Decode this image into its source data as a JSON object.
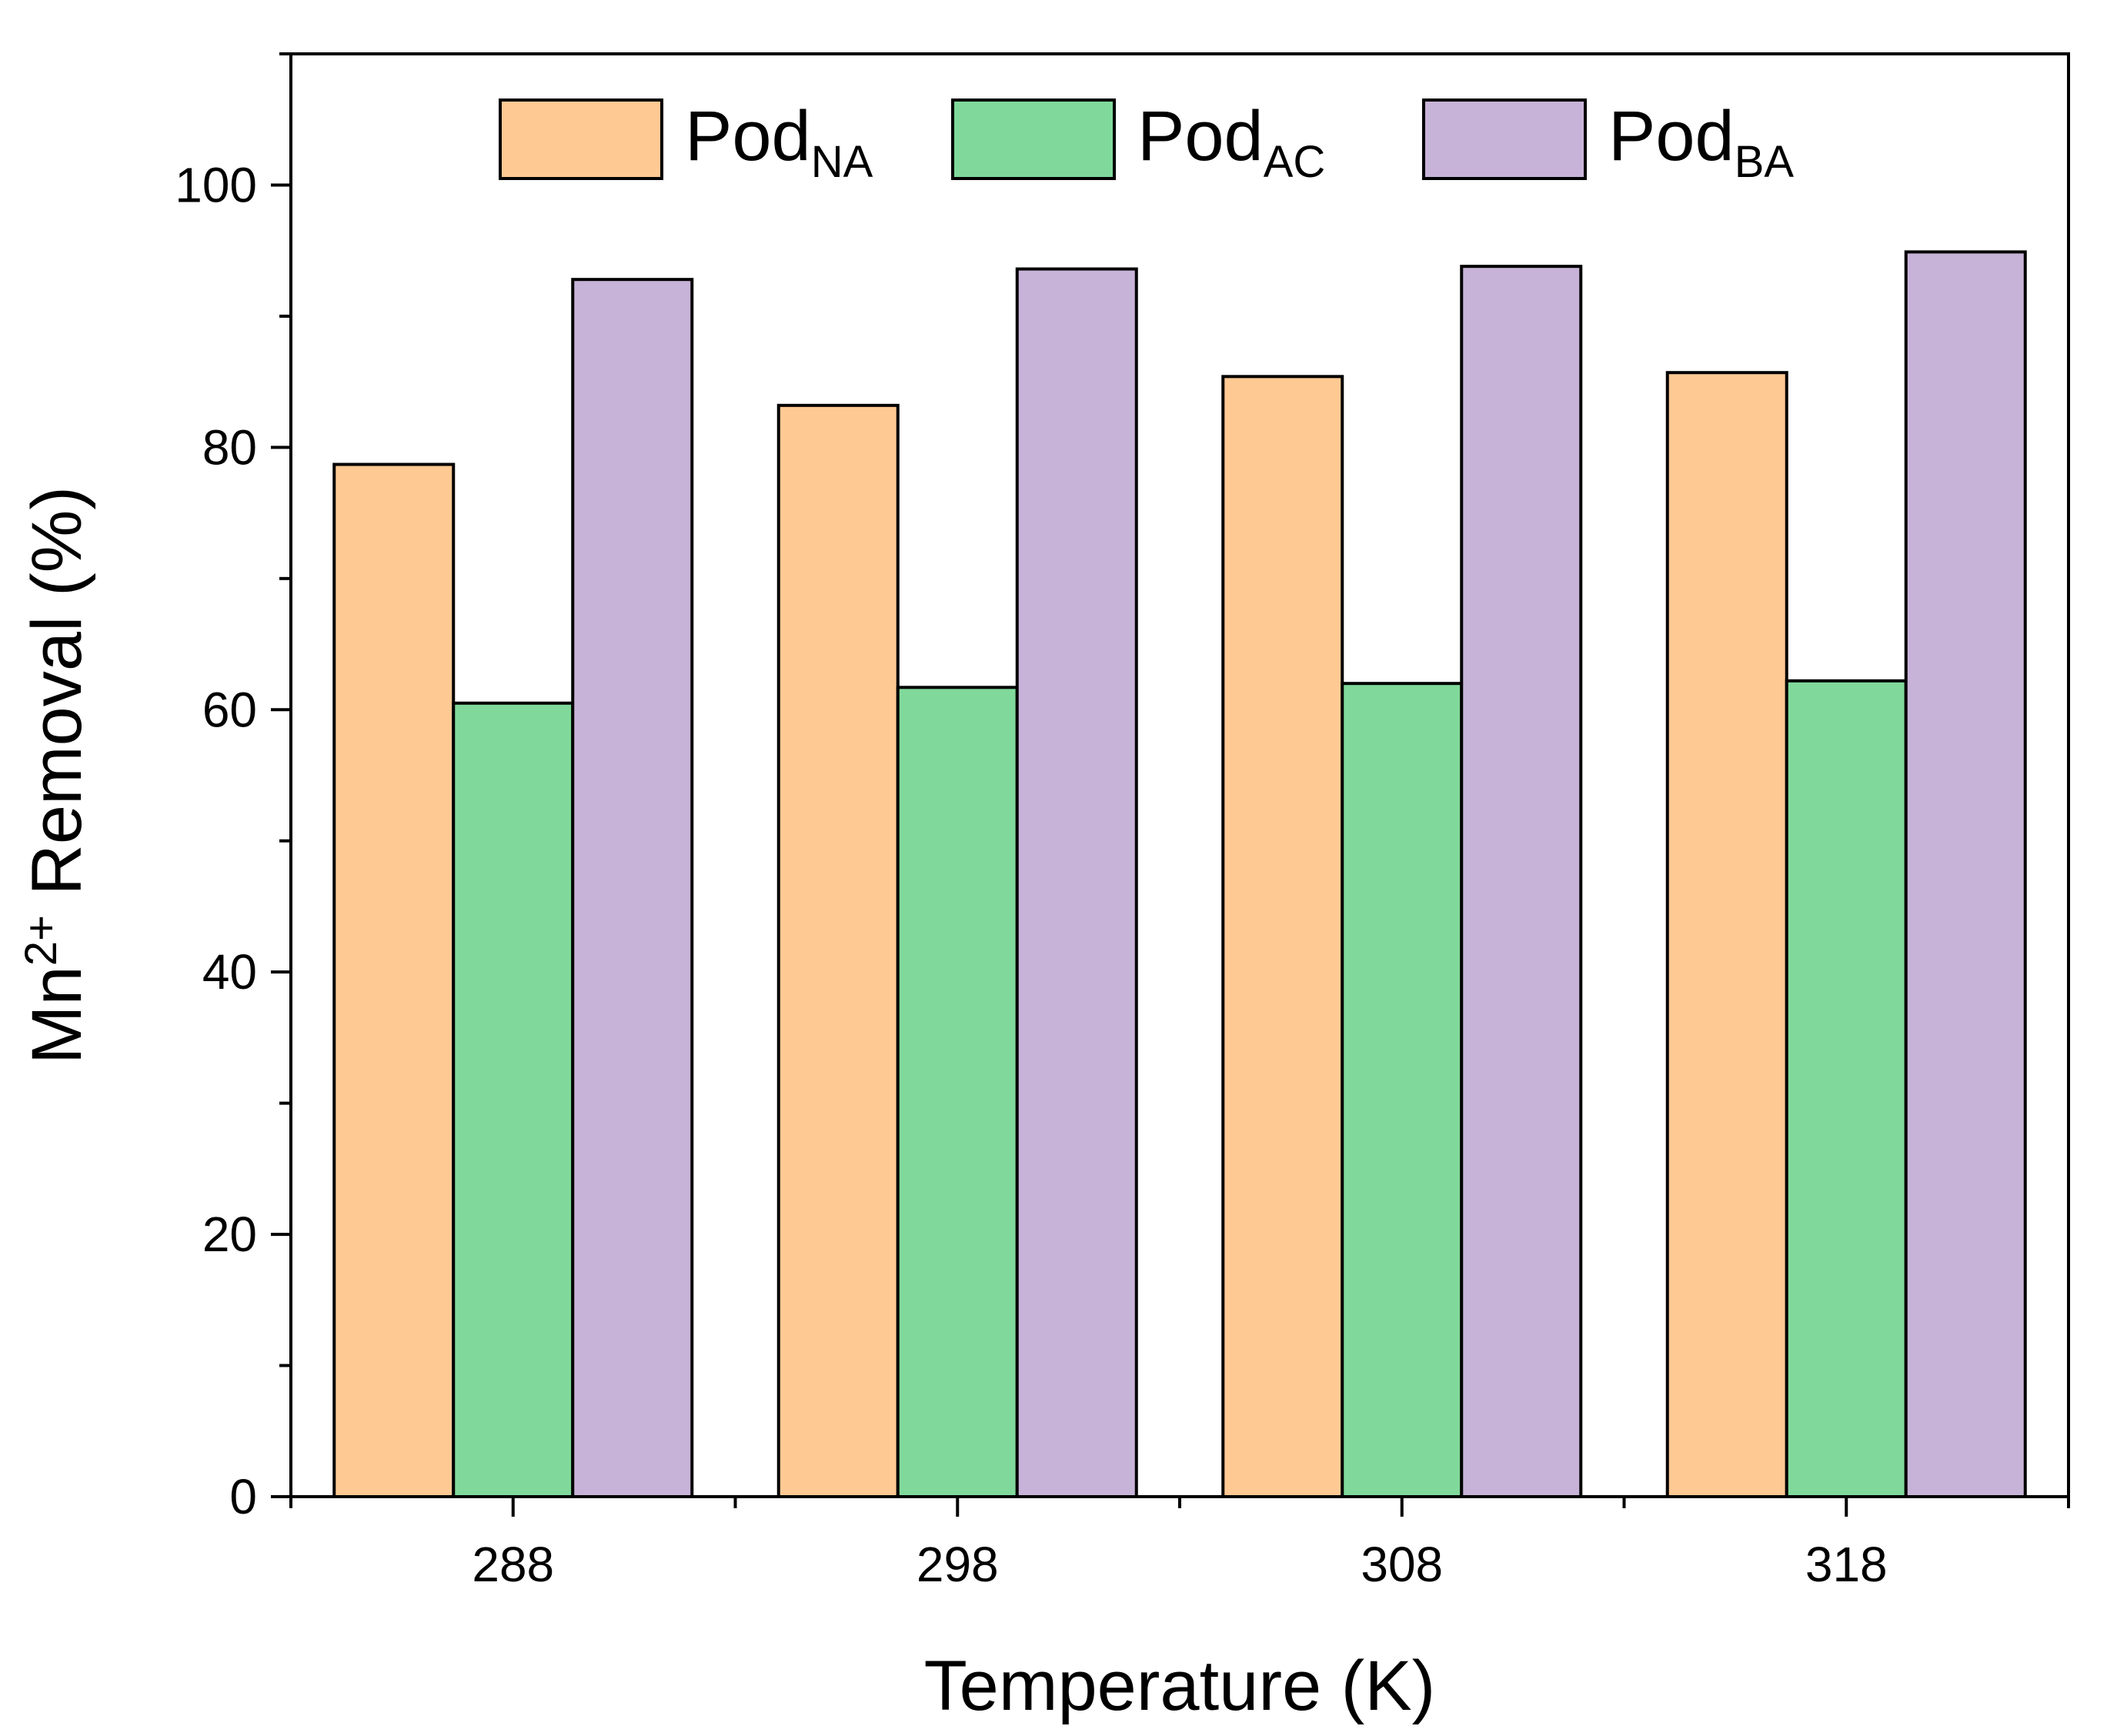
{
  "chart_data": {
    "type": "bar",
    "xlabel": "Temperature (K)",
    "ylabel": {
      "prefix": "Mn",
      "sup": "2+",
      "suffix": " Removal (%)"
    },
    "categories": [
      "288",
      "298",
      "308",
      "318"
    ],
    "ylim": [
      0,
      110
    ],
    "yticks": [
      0,
      20,
      40,
      60,
      80,
      100
    ],
    "yminor_step": 10,
    "grid": false,
    "legend_position": "top",
    "series": [
      {
        "name": "Pod",
        "sub": "NA",
        "color": "#FFC993",
        "values": [
          78.7,
          83.2,
          85.4,
          85.7
        ]
      },
      {
        "name": "Pod",
        "sub": "AC",
        "color": "#80D99A",
        "values": [
          60.5,
          61.7,
          62.0,
          62.2
        ]
      },
      {
        "name": "Pod",
        "sub": "BA",
        "color": "#C8B3D8",
        "values": [
          92.8,
          93.6,
          93.8,
          94.9
        ]
      }
    ]
  }
}
